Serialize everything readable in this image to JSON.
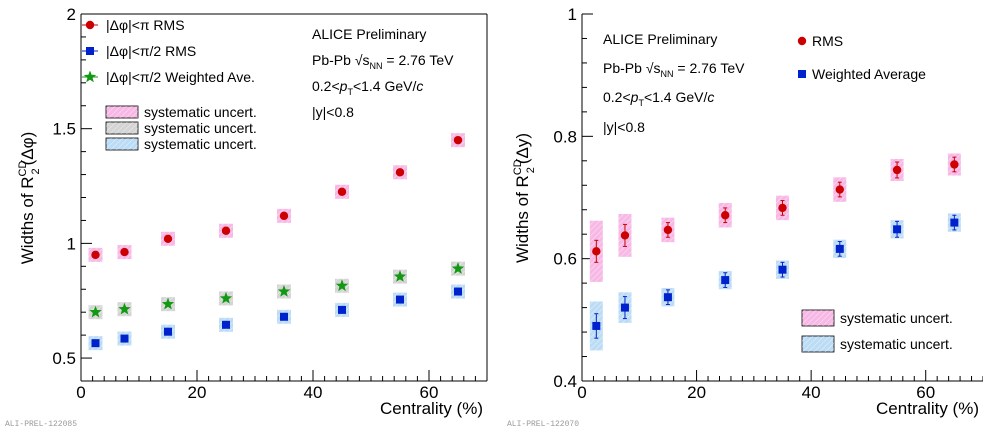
{
  "chart_data": [
    {
      "type": "scatter",
      "xlabel": "Centrality (%)",
      "ylabel_main": "Widths of R",
      "ylabel_sup": "CD",
      "ylabel_sub": "2",
      "ylabel_tail": "(Δφ)",
      "xlim": [
        0,
        70
      ],
      "ylim": [
        0.4,
        2.0
      ],
      "xticks": [
        0,
        20,
        40,
        60
      ],
      "xtick_labels": [
        "0",
        "20",
        "40",
        "60"
      ],
      "yticks": [
        0.5,
        1.0,
        1.5,
        2.0
      ],
      "ytick_labels": [
        "0.5",
        "1",
        "1.5",
        "2"
      ],
      "x": [
        2.5,
        7.5,
        15,
        25,
        35,
        45,
        55,
        65
      ],
      "series": [
        {
          "name": "|Δφ|<π RMS",
          "marker": "circle",
          "color": "#cc0000",
          "band": "#f7b8e6",
          "values": [
            0.95,
            0.962,
            1.02,
            1.055,
            1.12,
            1.225,
            1.31,
            1.45
          ]
        },
        {
          "name": "|Δφ|<π/2 RMS",
          "marker": "square",
          "color": "#0022cc",
          "band": "#bcdcf5",
          "values": [
            0.565,
            0.585,
            0.615,
            0.645,
            0.68,
            0.71,
            0.755,
            0.79
          ]
        },
        {
          "name": "|Δφ|<π/2 Weighted Ave.",
          "marker": "star",
          "color": "#119911",
          "band": "#d4d4d4",
          "values": [
            0.7,
            0.713,
            0.735,
            0.76,
            0.79,
            0.815,
            0.855,
            0.89
          ]
        }
      ],
      "legend_markers": [
        {
          "label": "|Δφ|<π RMS",
          "marker": "circle",
          "color": "#cc0000"
        },
        {
          "label": "|Δφ|<π/2 RMS",
          "marker": "square",
          "color": "#0022cc"
        },
        {
          "label": "|Δφ|<π/2 Weighted Ave.",
          "marker": "star",
          "color": "#119911"
        }
      ],
      "legend_boxes": [
        {
          "label": "systematic uncert.",
          "color": "#f7b8e6"
        },
        {
          "label": "systematic uncert.",
          "color": "#d4d4d4"
        },
        {
          "label": "systematic uncert.",
          "color": "#bcdcf5"
        }
      ],
      "annotation": {
        "l1": "ALICE Preliminary",
        "l2_pre": "Pb-Pb",
        "l2_sqrt": "s",
        "l2_sub": "NN",
        "l2_post": " = 2.76 TeV",
        "l3_pre": "0.2<",
        "l3_p": "p",
        "l3_sub": "T",
        "l3_mid": "<1.4 GeV/",
        "l3_c": "c",
        "l4": "|y|<0.8"
      },
      "footer": "ALI-PREL-122085"
    },
    {
      "type": "scatter",
      "xlabel": "Centrality (%)",
      "ylabel_main": "Widths of R",
      "ylabel_sup": "CD",
      "ylabel_sub": "2",
      "ylabel_tail": "(Δy)",
      "xlim": [
        0,
        70
      ],
      "ylim": [
        0.4,
        1.0
      ],
      "xticks": [
        0,
        20,
        40,
        60
      ],
      "xtick_labels": [
        "0",
        "20",
        "40",
        "60"
      ],
      "yticks": [
        0.4,
        0.6,
        0.8,
        1.0
      ],
      "ytick_labels": [
        "0.4",
        "0.6",
        "0.8",
        "1"
      ],
      "x": [
        2.5,
        7.5,
        15,
        25,
        35,
        45,
        55,
        65
      ],
      "series": [
        {
          "name": "RMS",
          "marker": "circle",
          "color": "#cc0000",
          "band": "#f7b8e6",
          "values": [
            0.612,
            0.638,
            0.647,
            0.671,
            0.683,
            0.713,
            0.745,
            0.754
          ],
          "errors": [
            0.018,
            0.018,
            0.012,
            0.012,
            0.012,
            0.012,
            0.013,
            0.012
          ],
          "syst": [
            0.05,
            0.035,
            0.02,
            0.02,
            0.02,
            0.02,
            0.018,
            0.018
          ]
        },
        {
          "name": "Weighted Average",
          "marker": "square",
          "color": "#0022cc",
          "band": "#bcdcf5",
          "values": [
            0.49,
            0.52,
            0.537,
            0.565,
            0.582,
            0.616,
            0.648,
            0.659
          ],
          "errors": [
            0.02,
            0.018,
            0.012,
            0.012,
            0.012,
            0.012,
            0.013,
            0.012
          ],
          "syst": [
            0.04,
            0.025,
            0.015,
            0.015,
            0.015,
            0.015,
            0.015,
            0.015
          ]
        }
      ],
      "legend_markers": [
        {
          "label": "RMS",
          "marker": "circle",
          "color": "#cc0000"
        },
        {
          "label": "Weighted Average",
          "marker": "square",
          "color": "#0022cc"
        }
      ],
      "legend_boxes": [
        {
          "label": "systematic uncert.",
          "color": "#f7b8e6"
        },
        {
          "label": "systematic uncert.",
          "color": "#bcdcf5"
        }
      ],
      "annotation": {
        "l1": "ALICE Preliminary",
        "l2_pre": "Pb-Pb",
        "l2_sqrt": "s",
        "l2_sub": "NN",
        "l2_post": " = 2.76 TeV",
        "l3_pre": "0.2<",
        "l3_p": "p",
        "l3_sub": "T",
        "l3_mid": "<1.4 GeV/",
        "l3_c": "c",
        "l4": "|y|<0.8"
      },
      "footer": "ALI-PREL-122070"
    }
  ]
}
